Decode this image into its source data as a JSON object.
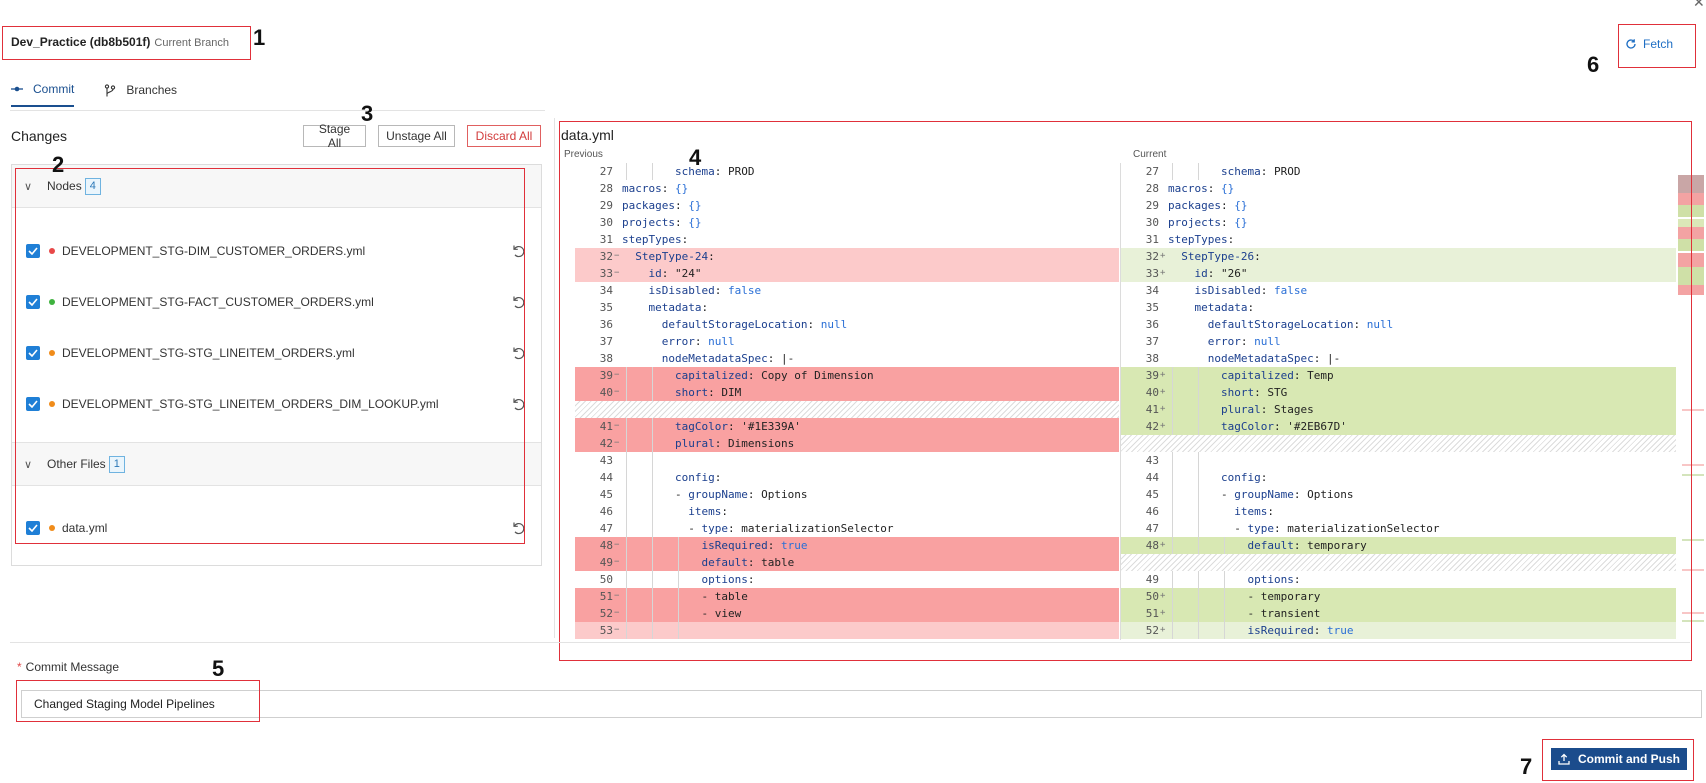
{
  "branch": {
    "name": "Dev_Practice (db8b501f)",
    "status": "Current Branch"
  },
  "tabs": [
    {
      "label": "Commit",
      "active": true
    },
    {
      "label": "Branches",
      "active": false
    }
  ],
  "changes": {
    "title": "Changes",
    "actions": {
      "stage_all": "Stage All",
      "unstage_all": "Unstage All",
      "discard_all": "Discard All"
    },
    "groups": [
      {
        "label": "Nodes",
        "count": "4",
        "files": [
          {
            "name": "DEVELOPMENT_STG-DIM_CUSTOMER_ORDERS.yml",
            "status_color": "#e84848",
            "checked": true
          },
          {
            "name": "DEVELOPMENT_STG-FACT_CUSTOMER_ORDERS.yml",
            "status_color": "#3fb23f",
            "checked": true
          },
          {
            "name": "DEVELOPMENT_STG-STG_LINEITEM_ORDERS.yml",
            "status_color": "#f08c1a",
            "checked": true
          },
          {
            "name": "DEVELOPMENT_STG-STG_LINEITEM_ORDERS_DIM_LOOKUP.yml",
            "status_color": "#f08c1a",
            "checked": true
          }
        ]
      },
      {
        "label": "Other Files",
        "count": "1",
        "files": [
          {
            "name": "data.yml",
            "status_color": "#f08c1a",
            "checked": true
          }
        ]
      }
    ]
  },
  "diff": {
    "file": "data.yml",
    "previous_label": "Previous",
    "current_label": "Current",
    "previous": [
      {
        "ln": "27",
        "mk": "",
        "type": "ctx",
        "code": "        schema: PROD",
        "guides": 2
      },
      {
        "ln": "28",
        "mk": "",
        "type": "ctx",
        "code": "macros: {}",
        "guides": 0
      },
      {
        "ln": "29",
        "mk": "",
        "type": "ctx",
        "code": "packages: {}",
        "guides": 0
      },
      {
        "ln": "30",
        "mk": "",
        "type": "ctx",
        "code": "projects: {}",
        "guides": 0
      },
      {
        "ln": "31",
        "mk": "",
        "type": "ctx",
        "code": "stepTypes:",
        "guides": 0
      },
      {
        "ln": "32",
        "mk": "−",
        "type": "del",
        "code": "  StepType-24:",
        "guides": 0
      },
      {
        "ln": "33",
        "mk": "−",
        "type": "del",
        "code": "    id: \"24\"",
        "guides": 0
      },
      {
        "ln": "34",
        "mk": "",
        "type": "ctx",
        "code": "    isDisabled: false",
        "guides": 0
      },
      {
        "ln": "35",
        "mk": "",
        "type": "ctx",
        "code": "    metadata:",
        "guides": 0
      },
      {
        "ln": "36",
        "mk": "",
        "type": "ctx",
        "code": "      defaultStorageLocation: null",
        "guides": 0
      },
      {
        "ln": "37",
        "mk": "",
        "type": "ctx",
        "code": "      error: null",
        "guides": 0
      },
      {
        "ln": "38",
        "mk": "",
        "type": "ctx",
        "code": "      nodeMetadataSpec: |-",
        "guides": 0
      },
      {
        "ln": "39",
        "mk": "−",
        "type": "del-strong",
        "code": "        capitalized: Copy of Dimension",
        "guides": 2
      },
      {
        "ln": "40",
        "mk": "−",
        "type": "del-strong",
        "code": "        short: DIM",
        "guides": 2
      },
      {
        "ln": "",
        "mk": "",
        "type": "hatch",
        "code": "",
        "guides": 0
      },
      {
        "ln": "41",
        "mk": "−",
        "type": "del-strong",
        "code": "        tagColor: '#1E339A'",
        "guides": 2
      },
      {
        "ln": "42",
        "mk": "−",
        "type": "del-strong",
        "code": "        plural: Dimensions",
        "guides": 2
      },
      {
        "ln": "43",
        "mk": "",
        "type": "ctx",
        "code": "",
        "guides": 2
      },
      {
        "ln": "44",
        "mk": "",
        "type": "ctx",
        "code": "        config:",
        "guides": 2
      },
      {
        "ln": "45",
        "mk": "",
        "type": "ctx",
        "code": "        - groupName: Options",
        "guides": 2
      },
      {
        "ln": "46",
        "mk": "",
        "type": "ctx",
        "code": "          items:",
        "guides": 2
      },
      {
        "ln": "47",
        "mk": "",
        "type": "ctx",
        "code": "          - type: materializationSelector",
        "guides": 2
      },
      {
        "ln": "48",
        "mk": "−",
        "type": "del-strong",
        "code": "            isRequired: true",
        "guides": 3
      },
      {
        "ln": "49",
        "mk": "−",
        "type": "del-strong",
        "code": "            default: table",
        "guides": 3
      },
      {
        "ln": "50",
        "mk": "",
        "type": "ctx",
        "code": "            options:",
        "guides": 3
      },
      {
        "ln": "51",
        "mk": "−",
        "type": "del-strong",
        "code": "            - table",
        "guides": 3
      },
      {
        "ln": "52",
        "mk": "−",
        "type": "del-strong",
        "code": "            - view",
        "guides": 3
      },
      {
        "ln": "53",
        "mk": "−",
        "type": "del",
        "code": "",
        "guides": 3
      }
    ],
    "current": [
      {
        "ln": "27",
        "mk": "",
        "type": "ctx",
        "code": "        schema: PROD",
        "guides": 2
      },
      {
        "ln": "28",
        "mk": "",
        "type": "ctx",
        "code": "macros: {}",
        "guides": 0
      },
      {
        "ln": "29",
        "mk": "",
        "type": "ctx",
        "code": "packages: {}",
        "guides": 0
      },
      {
        "ln": "30",
        "mk": "",
        "type": "ctx",
        "code": "projects: {}",
        "guides": 0
      },
      {
        "ln": "31",
        "mk": "",
        "type": "ctx",
        "code": "stepTypes:",
        "guides": 0
      },
      {
        "ln": "32",
        "mk": "+",
        "type": "add",
        "code": "  StepType-26:",
        "guides": 0
      },
      {
        "ln": "33",
        "mk": "+",
        "type": "add",
        "code": "    id: \"26\"",
        "guides": 0
      },
      {
        "ln": "34",
        "mk": "",
        "type": "ctx",
        "code": "    isDisabled: false",
        "guides": 0
      },
      {
        "ln": "35",
        "mk": "",
        "type": "ctx",
        "code": "    metadata:",
        "guides": 0
      },
      {
        "ln": "36",
        "mk": "",
        "type": "ctx",
        "code": "      defaultStorageLocation: null",
        "guides": 0
      },
      {
        "ln": "37",
        "mk": "",
        "type": "ctx",
        "code": "      error: null",
        "guides": 0
      },
      {
        "ln": "38",
        "mk": "",
        "type": "ctx",
        "code": "      nodeMetadataSpec: |-",
        "guides": 0
      },
      {
        "ln": "39",
        "mk": "+",
        "type": "add-strong",
        "code": "        capitalized: Temp",
        "guides": 2
      },
      {
        "ln": "40",
        "mk": "+",
        "type": "add-strong",
        "code": "        short: STG",
        "guides": 2
      },
      {
        "ln": "41",
        "mk": "+",
        "type": "add-strong",
        "code": "        plural: Stages",
        "guides": 2
      },
      {
        "ln": "42",
        "mk": "+",
        "type": "add-strong",
        "code": "        tagColor: '#2EB67D'",
        "guides": 2
      },
      {
        "ln": "",
        "mk": "",
        "type": "hatch",
        "code": "",
        "guides": 0
      },
      {
        "ln": "43",
        "mk": "",
        "type": "ctx",
        "code": "",
        "guides": 2
      },
      {
        "ln": "44",
        "mk": "",
        "type": "ctx",
        "code": "        config:",
        "guides": 2
      },
      {
        "ln": "45",
        "mk": "",
        "type": "ctx",
        "code": "        - groupName: Options",
        "guides": 2
      },
      {
        "ln": "46",
        "mk": "",
        "type": "ctx",
        "code": "          items:",
        "guides": 2
      },
      {
        "ln": "47",
        "mk": "",
        "type": "ctx",
        "code": "          - type: materializationSelector",
        "guides": 2
      },
      {
        "ln": "48",
        "mk": "+",
        "type": "add-strong",
        "code": "            default: temporary",
        "guides": 3
      },
      {
        "ln": "",
        "mk": "",
        "type": "hatch",
        "code": "",
        "guides": 0
      },
      {
        "ln": "49",
        "mk": "",
        "type": "ctx",
        "code": "            options:",
        "guides": 3
      },
      {
        "ln": "50",
        "mk": "+",
        "type": "add-strong",
        "code": "            - temporary",
        "guides": 3
      },
      {
        "ln": "51",
        "mk": "+",
        "type": "add-strong",
        "code": "            - transient",
        "guides": 3
      },
      {
        "ln": "52",
        "mk": "+",
        "type": "add",
        "code": "            isRequired: true",
        "guides": 3
      }
    ]
  },
  "commit": {
    "label": "Commit Message",
    "required_mark": "*",
    "value": "Changed Staging Model Pipelines",
    "push_label": "Commit and Push"
  },
  "fetch_label": "Fetch",
  "callouts": [
    "1",
    "2",
    "3",
    "4",
    "5",
    "6",
    "7"
  ],
  "colors": {
    "accent": "#1b4c8c",
    "link": "#1f6fc4",
    "callout_red": "#e0303a",
    "deleted": "#f9a1a1",
    "added": "#d8e8b3",
    "modified_dot": "#f08c1a",
    "deleted_dot": "#e84848",
    "added_dot": "#3fb23f"
  },
  "icons": {
    "commit_tab": "commit-icon",
    "branches_tab": "branch-icon",
    "fetch": "refresh-icon",
    "push": "upload-icon",
    "revert": "undo-icon",
    "close": "close-icon"
  }
}
